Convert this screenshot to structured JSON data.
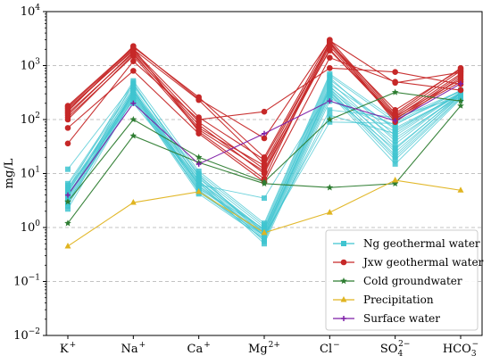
{
  "chart_data": {
    "type": "line",
    "title": "",
    "xlabel": "",
    "ylabel": "mg/L",
    "yscale": "log",
    "ylim": [
      0.01,
      10000
    ],
    "y_ticks": [
      {
        "value": 0.01,
        "base": "10",
        "exp": "−2"
      },
      {
        "value": 0.1,
        "base": "10",
        "exp": "−1"
      },
      {
        "value": 1,
        "base": "10",
        "exp": "0"
      },
      {
        "value": 10,
        "base": "10",
        "exp": "1"
      },
      {
        "value": 100,
        "base": "10",
        "exp": "2"
      },
      {
        "value": 1000,
        "base": "10",
        "exp": "3"
      },
      {
        "value": 10000,
        "base": "10",
        "exp": "4"
      }
    ],
    "categories": [
      {
        "base": "K",
        "sup": "+",
        "sub": ""
      },
      {
        "base": "Na",
        "sup": "+",
        "sub": ""
      },
      {
        "base": "Ca",
        "sup": "+",
        "sub": ""
      },
      {
        "base": "Mg",
        "sup": "2+",
        "sub": ""
      },
      {
        "base": "Cl",
        "sup": "−",
        "sub": ""
      },
      {
        "base": "SO",
        "sup": "2−",
        "sub": "4"
      },
      {
        "base": "HCO",
        "sup": "−",
        "sub": "3"
      }
    ],
    "grid": "horizontal dashed at major ticks",
    "legend_position": "lower-right",
    "series": [
      {
        "name": "Ng geothermal water",
        "color": "#3fc4d0",
        "marker": "square",
        "samples": [
          [
            12,
            450,
            9,
            1.0,
            600,
            50,
            310
          ],
          [
            6,
            380,
            8,
            0.9,
            500,
            40,
            300
          ],
          [
            5,
            350,
            7,
            0.85,
            420,
            30,
            280
          ],
          [
            4.5,
            320,
            6.5,
            0.8,
            380,
            25,
            270
          ],
          [
            4,
            300,
            6,
            0.75,
            350,
            20,
            260
          ],
          [
            3.5,
            280,
            5.5,
            0.7,
            320,
            18,
            250
          ],
          [
            3,
            260,
            5,
            0.65,
            300,
            15,
            240
          ],
          [
            2.8,
            240,
            4.8,
            0.6,
            280,
            28,
            300
          ],
          [
            5.5,
            220,
            7.5,
            0.55,
            250,
            60,
            320
          ],
          [
            4.2,
            200,
            6.8,
            0.5,
            220,
            80,
            350
          ],
          [
            6.5,
            420,
            10,
            1.1,
            650,
            90,
            330
          ],
          [
            3.2,
            340,
            5.2,
            0.95,
            450,
            70,
            290
          ],
          [
            2.5,
            310,
            4.5,
            0.7,
            400,
            45,
            275
          ],
          [
            4.8,
            290,
            8.5,
            0.8,
            360,
            35,
            310
          ],
          [
            3.8,
            270,
            6.2,
            3.5,
            330,
            22,
            285
          ],
          [
            2.2,
            250,
            4.2,
            0.62,
            150,
            110,
            265
          ],
          [
            5.2,
            520,
            11,
            1.2,
            700,
            100,
            340
          ],
          [
            3.6,
            480,
            7.2,
            0.9,
            550,
            65,
            295
          ],
          [
            4.4,
            360,
            5.8,
            0.72,
            90,
            85,
            305
          ],
          [
            2.9,
            330,
            9.5,
            0.68,
            120,
            55,
            315
          ]
        ]
      },
      {
        "name": "Jxw geothermal water",
        "color": "#c62828",
        "marker": "circle",
        "samples": [
          [
            180,
            2200,
            260,
            20,
            3000,
            130,
            900
          ],
          [
            150,
            2000,
            230,
            15,
            2700,
            120,
            800
          ],
          [
            120,
            1800,
            90,
            12,
            2500,
            110,
            700
          ],
          [
            100,
            1600,
            80,
            10,
            2300,
            100,
            650
          ],
          [
            170,
            2100,
            60,
            8,
            2800,
            90,
            600
          ],
          [
            36,
            1200,
            100,
            140,
            900,
            760,
            450
          ],
          [
            70,
            800,
            55,
            7,
            1400,
            500,
            350
          ],
          [
            160,
            1900,
            110,
            18,
            2600,
            150,
            850
          ],
          [
            130,
            1700,
            70,
            14,
            1900,
            115,
            550
          ],
          [
            110,
            1500,
            65,
            11,
            2000,
            105,
            500
          ],
          [
            140,
            2300,
            240,
            45,
            2900,
            480,
            750
          ]
        ]
      },
      {
        "name": "Cold groundwater",
        "color": "#2e7d32",
        "marker": "star",
        "samples": [
          [
            3,
            100,
            20,
            7,
            100,
            320,
            220
          ],
          [
            1.2,
            50,
            16,
            6.5,
            5.5,
            6.5,
            180
          ]
        ]
      },
      {
        "name": "Precipitation",
        "color": "#e0b420",
        "marker": "triangle",
        "samples": [
          [
            0.45,
            2.9,
            4.6,
            0.8,
            1.9,
            7.5,
            4.9
          ]
        ]
      },
      {
        "name": "Surface water",
        "color": "#7e1fa8",
        "marker": "plus",
        "samples": [
          [
            4,
            200,
            15,
            55,
            220,
            95,
            460
          ]
        ]
      }
    ]
  }
}
